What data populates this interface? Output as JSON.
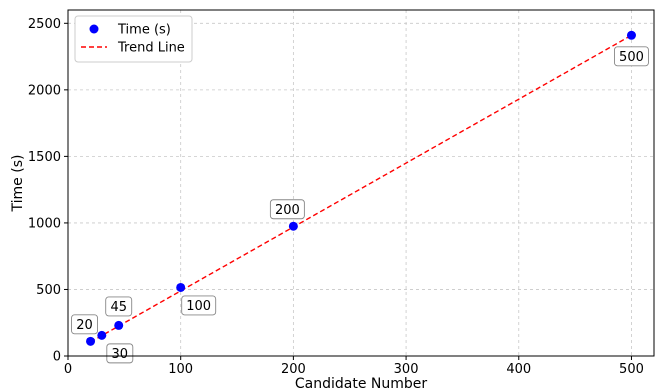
{
  "chart_data": {
    "type": "scatter",
    "title": "",
    "xlabel": "Candidate Number",
    "ylabel": "Time (s)",
    "xlim": [
      0,
      520
    ],
    "ylim": [
      0,
      2600
    ],
    "xticks": [
      0,
      100,
      200,
      300,
      400,
      500
    ],
    "yticks": [
      0,
      500,
      1000,
      1500,
      2000,
      2500
    ],
    "grid": true,
    "legend_position": "top-left",
    "series": [
      {
        "name": "Time (s)",
        "kind": "scatter",
        "color": "#0000ff",
        "x": [
          20,
          30,
          45,
          100,
          200,
          500
        ],
        "y": [
          110,
          155,
          230,
          515,
          975,
          2410
        ]
      },
      {
        "name": "Trend Line",
        "kind": "line",
        "style": "dashed",
        "color": "#ff0000",
        "x": [
          20,
          500
        ],
        "y": [
          105,
          2410
        ]
      }
    ],
    "annotations": [
      {
        "text": "20",
        "x": 20,
        "y": 110,
        "placement": "above-left"
      },
      {
        "text": "30",
        "x": 30,
        "y": 155,
        "placement": "below-right"
      },
      {
        "text": "45",
        "x": 45,
        "y": 230,
        "placement": "above"
      },
      {
        "text": "100",
        "x": 100,
        "y": 515,
        "placement": "below-right"
      },
      {
        "text": "200",
        "x": 200,
        "y": 975,
        "placement": "above-left"
      },
      {
        "text": "500",
        "x": 500,
        "y": 2410,
        "placement": "below"
      }
    ]
  }
}
